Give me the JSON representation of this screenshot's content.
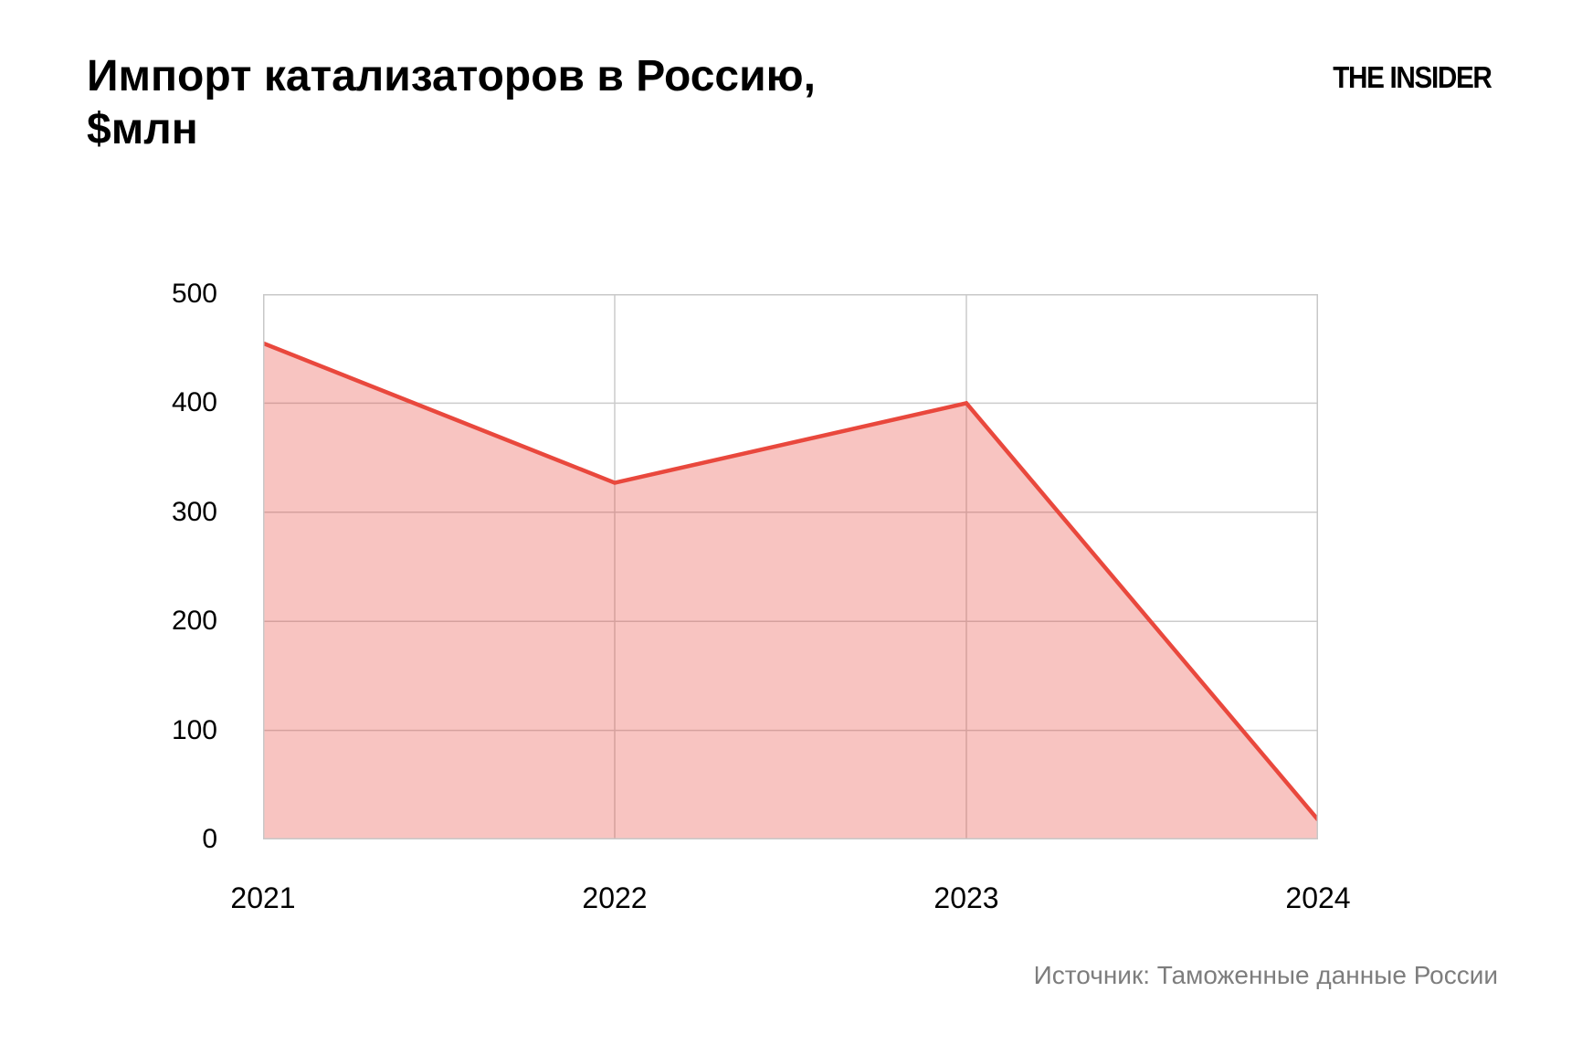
{
  "header": {
    "title": "Импорт катализаторов в Россию, $млн",
    "logo": "THE INSIDER"
  },
  "footer": {
    "source": "Источник: Таможенные данные России"
  },
  "colors": {
    "line": "#e9483d",
    "fill_opacity": 0.32,
    "grid": "#cccccc",
    "border": "#c8c8c8",
    "text": "#000000",
    "source_text": "#7d7d7d",
    "background": "#ffffff"
  },
  "chart_data": {
    "type": "area",
    "title": "Импорт катализаторов в Россию, $млн",
    "categories": [
      "2021",
      "2022",
      "2023",
      "2024"
    ],
    "values": [
      455,
      327,
      400,
      18
    ],
    "series": [
      {
        "name": "Импорт катализаторов, $млн",
        "values": [
          455,
          327,
          400,
          18
        ]
      }
    ],
    "xlabel": "",
    "ylabel": "",
    "ylim": [
      0,
      500
    ],
    "yticks": [
      0,
      100,
      200,
      300,
      400,
      500
    ],
    "grid": true,
    "legend_position": "none",
    "source": "Источник: Таможенные данные России"
  }
}
